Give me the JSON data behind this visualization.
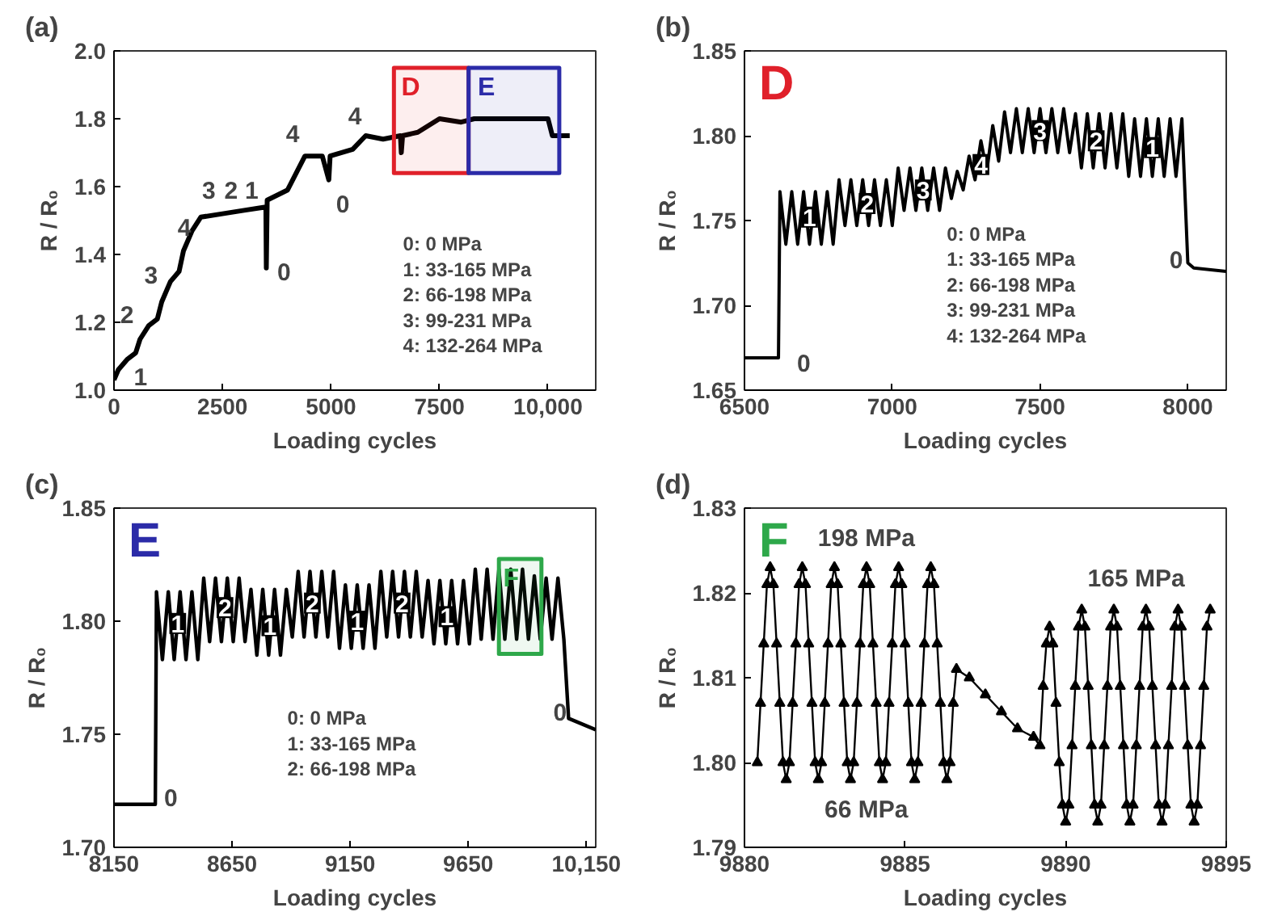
{
  "chart_data": [
    {
      "type": "line",
      "title": "(a)",
      "xlabel": "Loading cycles",
      "ylabel": "R / R₀",
      "xlim": [
        0,
        11100
      ],
      "ylim": [
        1.0,
        2.0
      ],
      "xticks": [
        0,
        2500,
        5000,
        7500,
        {
          "value": 10000,
          "label": "10,000"
        }
      ],
      "yticks": [
        {
          "value": 1.0,
          "label": "1.0"
        },
        1.2,
        1.4,
        1.6,
        1.8,
        {
          "value": 2.0,
          "label": "2.0"
        }
      ],
      "series": [
        {
          "color": "#000000",
          "x": [
            0,
            100,
            300,
            500,
            600,
            800,
            1000,
            1100,
            1300,
            1500,
            1600,
            1800,
            2000,
            2500,
            3000,
            3500,
            3510,
            3530,
            4000,
            4200,
            4400,
            4800,
            4950,
            4980,
            5500,
            5800,
            6200,
            6600,
            6620,
            6650,
            7000,
            7500,
            8000,
            8300,
            10000,
            10100,
            10500
          ],
          "values": [
            1.03,
            1.06,
            1.09,
            1.11,
            1.15,
            1.19,
            1.21,
            1.26,
            1.32,
            1.35,
            1.41,
            1.47,
            1.51,
            1.52,
            1.53,
            1.54,
            1.36,
            1.56,
            1.59,
            1.64,
            1.69,
            1.69,
            1.62,
            1.69,
            1.71,
            1.75,
            1.74,
            1.75,
            1.7,
            1.75,
            1.76,
            1.8,
            1.79,
            1.8,
            1.8,
            1.75,
            1.75
          ]
        }
      ],
      "bands": [
        {
          "axis": "x",
          "from": 6450,
          "to": 8170,
          "label": "D",
          "color": "#e0202a"
        },
        {
          "axis": "x",
          "from": 8170,
          "to": 10260,
          "label": "E",
          "color": "#2b2ba8"
        }
      ],
      "annotations": [
        "1",
        "2",
        "3",
        "4",
        "3",
        "2",
        "1",
        "0",
        "4",
        "0",
        "4",
        "0: 0 MPa",
        "1: 33-165 MPa",
        "2: 66-198 MPa",
        "3: 99-231 MPa",
        "4: 132-264 MPa"
      ]
    },
    {
      "type": "line",
      "title": "(b)",
      "subtitle": "D",
      "xlabel": "Loading cycles",
      "ylabel": "R / R₀",
      "xlim": [
        6500,
        8130
      ],
      "ylim": [
        1.65,
        1.85
      ],
      "xticks": [
        6500,
        7000,
        7500,
        8000
      ],
      "yticks": [
        1.65,
        {
          "value": 1.7,
          "label": "1.70"
        },
        1.75,
        {
          "value": 1.8,
          "label": "1.80"
        },
        1.85
      ],
      "series": [
        {
          "color": "#000000",
          "x": [
            6500,
            6615,
            6620,
            6640,
            6660,
            6680,
            6700,
            6720,
            6740,
            6760,
            6780,
            6800,
            6820,
            6840,
            6860,
            6880,
            6900,
            6920,
            6940,
            6960,
            6980,
            7000,
            7020,
            7040,
            7060,
            7080,
            7100,
            7120,
            7140,
            7160,
            7180,
            7200,
            7220,
            7240,
            7260,
            7280,
            7300,
            7320,
            7340,
            7360,
            7380,
            7400,
            7420,
            7440,
            7460,
            7480,
            7500,
            7520,
            7540,
            7560,
            7580,
            7600,
            7620,
            7640,
            7660,
            7680,
            7700,
            7720,
            7740,
            7760,
            7780,
            7800,
            7820,
            7840,
            7860,
            7880,
            7900,
            7920,
            7940,
            7960,
            7980,
            8000,
            8020,
            8130
          ],
          "values": [
            1.669,
            1.669,
            1.767,
            1.736,
            1.767,
            1.736,
            1.767,
            1.736,
            1.767,
            1.736,
            1.767,
            1.736,
            1.774,
            1.747,
            1.774,
            1.747,
            1.774,
            1.747,
            1.774,
            1.747,
            1.774,
            1.747,
            1.781,
            1.756,
            1.781,
            1.756,
            1.781,
            1.756,
            1.781,
            1.756,
            1.781,
            1.763,
            1.779,
            1.768,
            1.788,
            1.774,
            1.797,
            1.779,
            1.806,
            1.785,
            1.814,
            1.79,
            1.816,
            1.79,
            1.816,
            1.79,
            1.816,
            1.79,
            1.816,
            1.79,
            1.816,
            1.79,
            1.813,
            1.781,
            1.813,
            1.781,
            1.813,
            1.781,
            1.813,
            1.781,
            1.813,
            1.776,
            1.81,
            1.776,
            1.81,
            1.776,
            1.81,
            1.776,
            1.81,
            1.776,
            1.81,
            1.725,
            1.722,
            1.72
          ]
        }
      ],
      "annotations": [
        {
          "text": "1",
          "x": 6720,
          "y": 1.752
        },
        {
          "text": "2",
          "x": 6915,
          "y": 1.76
        },
        {
          "text": "3",
          "x": 7105,
          "y": 1.768
        },
        {
          "text": "4",
          "x": 7300,
          "y": 1.783
        },
        {
          "text": "3",
          "x": 7500,
          "y": 1.803
        },
        {
          "text": "2",
          "x": 7690,
          "y": 1.797
        },
        {
          "text": "1",
          "x": 7880,
          "y": 1.793
        },
        "0",
        "0",
        "0: 0 MPa",
        "1: 33-165 MPa",
        "2: 66-198 MPa",
        "3: 99-231 MPa",
        "4: 132-264 MPa"
      ]
    },
    {
      "type": "line",
      "title": "(c)",
      "subtitle": "E",
      "xlabel": "Loading cycles",
      "ylabel": "R / R₀",
      "xlim": [
        8150,
        10190
      ],
      "ylim": [
        1.7,
        1.85
      ],
      "xticks": [
        8150,
        8650,
        9150,
        9650,
        {
          "value": 10150,
          "label": "10,150"
        }
      ],
      "yticks": [
        {
          "value": 1.7,
          "label": "1.70"
        },
        1.75,
        {
          "value": 1.8,
          "label": "1.80"
        },
        1.85
      ],
      "series": [
        {
          "color": "#000000",
          "x": [
            8150,
            8325,
            8330,
            8355,
            8380,
            8405,
            8430,
            8455,
            8480,
            8505,
            8530,
            8555,
            8580,
            8605,
            8630,
            8655,
            8680,
            8705,
            8730,
            8755,
            8780,
            8805,
            8830,
            8855,
            8880,
            8905,
            8930,
            8955,
            8980,
            9005,
            9030,
            9055,
            9080,
            9105,
            9130,
            9155,
            9180,
            9205,
            9230,
            9255,
            9280,
            9305,
            9330,
            9355,
            9380,
            9405,
            9430,
            9455,
            9480,
            9505,
            9530,
            9555,
            9580,
            9605,
            9630,
            9655,
            9680,
            9705,
            9730,
            9755,
            9780,
            9805,
            9830,
            9855,
            9880,
            9905,
            9930,
            9955,
            9980,
            10005,
            10030,
            10055,
            10075,
            10190
          ],
          "values": [
            1.719,
            1.719,
            1.813,
            1.783,
            1.813,
            1.783,
            1.813,
            1.783,
            1.813,
            1.783,
            1.819,
            1.791,
            1.819,
            1.791,
            1.819,
            1.791,
            1.819,
            1.791,
            1.814,
            1.785,
            1.814,
            1.785,
            1.814,
            1.785,
            1.814,
            1.793,
            1.822,
            1.793,
            1.822,
            1.793,
            1.822,
            1.793,
            1.822,
            1.788,
            1.816,
            1.788,
            1.816,
            1.788,
            1.816,
            1.788,
            1.822,
            1.793,
            1.822,
            1.793,
            1.822,
            1.793,
            1.822,
            1.793,
            1.818,
            1.79,
            1.818,
            1.79,
            1.818,
            1.79,
            1.818,
            1.79,
            1.823,
            1.792,
            1.823,
            1.792,
            1.823,
            1.792,
            1.823,
            1.792,
            1.823,
            1.792,
            1.82,
            1.792,
            1.819,
            1.792,
            1.819,
            1.792,
            1.757,
            1.752
          ]
        }
      ],
      "bands": [
        {
          "axis": "x",
          "from": 9780,
          "to": 9960,
          "label": "F",
          "color": "#2ea84a"
        }
      ],
      "annotations": [
        {
          "text": "1",
          "x": 8420,
          "y": 1.799
        },
        {
          "text": "2",
          "x": 8620,
          "y": 1.806
        },
        {
          "text": "1",
          "x": 8810,
          "y": 1.798
        },
        {
          "text": "2",
          "x": 8990,
          "y": 1.808
        },
        {
          "text": "1",
          "x": 9180,
          "y": 1.8
        },
        {
          "text": "2",
          "x": 9370,
          "y": 1.808
        },
        {
          "text": "1",
          "x": 9560,
          "y": 1.802
        },
        "0",
        "0",
        "0: 0 MPa",
        "1: 33-165 MPa",
        "2: 66-198 MPa"
      ]
    },
    {
      "type": "line",
      "title": "(d)",
      "subtitle": "F",
      "xlabel": "Loading cycles",
      "ylabel": "R / R₀",
      "xlim": [
        9880,
        9895
      ],
      "ylim": [
        1.79,
        1.83
      ],
      "marker": "triangle",
      "xticks": [
        9880,
        9885,
        9890,
        9895
      ],
      "yticks": [
        1.79,
        {
          "value": 1.8,
          "label": "1.80"
        },
        1.81,
        1.82,
        1.83
      ],
      "series": [
        {
          "color": "#000000",
          "x": [
            9880.4,
            9880.5,
            9880.6,
            9880.7,
            9880.8,
            9880.9,
            9881.0,
            9881.1,
            9881.2,
            9881.3,
            9881.4,
            9881.5,
            9881.6,
            9881.7,
            9881.8,
            9881.9,
            9882.0,
            9882.1,
            9882.2,
            9882.3,
            9882.4,
            9882.5,
            9882.6,
            9882.7,
            9882.8,
            9882.9,
            9883.0,
            9883.1,
            9883.2,
            9883.3,
            9883.4,
            9883.5,
            9883.6,
            9883.7,
            9883.8,
            9883.9,
            9884.0,
            9884.1,
            9884.2,
            9884.3,
            9884.4,
            9884.5,
            9884.6,
            9884.7,
            9884.8,
            9884.9,
            9885.0,
            9885.1,
            9885.2,
            9885.3,
            9885.4,
            9885.5,
            9885.6,
            9885.7,
            9885.8,
            9885.9,
            9886.0,
            9886.1,
            9886.2,
            9886.3,
            9886.4,
            9886.5,
            9886.6,
            9887.0,
            9887.5,
            9888.0,
            9888.5,
            9889.0,
            9889.2,
            9889.3,
            9889.4,
            9889.5,
            9889.6,
            9889.7,
            9889.8,
            9889.9,
            9890.0,
            9890.1,
            9890.2,
            9890.3,
            9890.4,
            9890.5,
            9890.6,
            9890.7,
            9890.8,
            9890.9,
            9891.0,
            9891.1,
            9891.2,
            9891.3,
            9891.4,
            9891.5,
            9891.6,
            9891.7,
            9891.8,
            9891.9,
            9892.0,
            9892.1,
            9892.2,
            9892.3,
            9892.4,
            9892.5,
            9892.6,
            9892.7,
            9892.8,
            9892.9,
            9893.0,
            9893.1,
            9893.2,
            9893.3,
            9893.4,
            9893.5,
            9893.6,
            9893.7,
            9893.8,
            9893.9,
            9894.0,
            9894.1,
            9894.2,
            9894.3,
            9894.4,
            9894.5
          ],
          "values": [
            1.8,
            1.807,
            1.814,
            1.821,
            1.823,
            1.821,
            1.814,
            1.807,
            1.8,
            1.798,
            1.8,
            1.807,
            1.814,
            1.821,
            1.823,
            1.821,
            1.814,
            1.807,
            1.8,
            1.798,
            1.8,
            1.807,
            1.814,
            1.821,
            1.823,
            1.821,
            1.814,
            1.807,
            1.8,
            1.798,
            1.8,
            1.807,
            1.814,
            1.821,
            1.823,
            1.821,
            1.814,
            1.807,
            1.8,
            1.798,
            1.8,
            1.807,
            1.814,
            1.821,
            1.823,
            1.821,
            1.814,
            1.807,
            1.8,
            1.798,
            1.8,
            1.807,
            1.814,
            1.821,
            1.823,
            1.821,
            1.814,
            1.807,
            1.8,
            1.798,
            1.8,
            1.807,
            1.811,
            1.81,
            1.808,
            1.806,
            1.804,
            1.803,
            1.802,
            1.809,
            1.814,
            1.816,
            1.814,
            1.807,
            1.8,
            1.795,
            1.793,
            1.795,
            1.802,
            1.809,
            1.816,
            1.818,
            1.816,
            1.809,
            1.802,
            1.795,
            1.793,
            1.795,
            1.802,
            1.809,
            1.816,
            1.818,
            1.816,
            1.809,
            1.802,
            1.795,
            1.793,
            1.795,
            1.802,
            1.809,
            1.816,
            1.818,
            1.816,
            1.809,
            1.802,
            1.795,
            1.793,
            1.795,
            1.802,
            1.809,
            1.816,
            1.818,
            1.816,
            1.809,
            1.802,
            1.795,
            1.793,
            1.795,
            1.802,
            1.809,
            1.816,
            1.818
          ]
        }
      ],
      "annotations": [
        "198 MPa",
        "66 MPa",
        "165 MPa"
      ]
    }
  ]
}
